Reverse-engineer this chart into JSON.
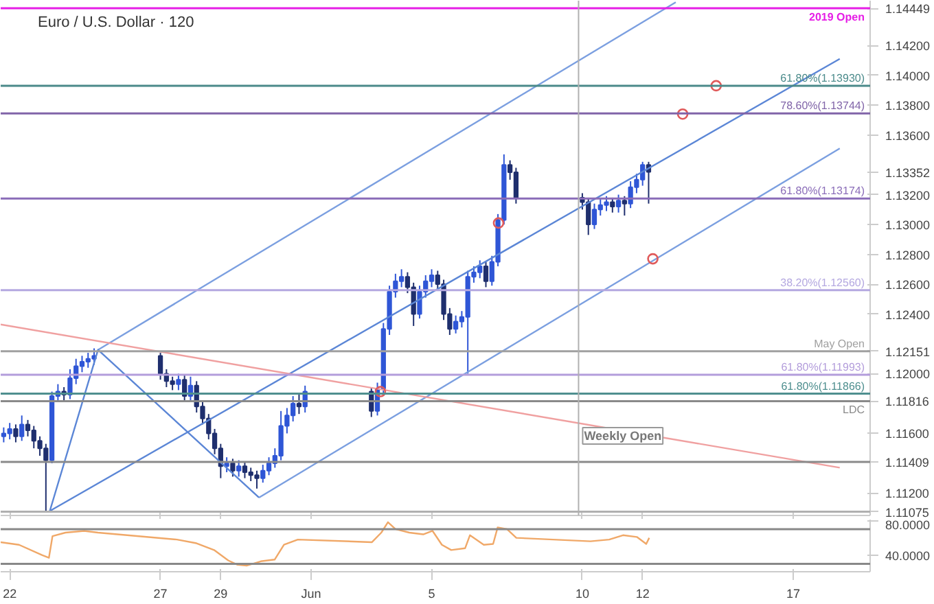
{
  "chart_data": [
    {
      "type": "candlestick",
      "title": "Euro / U.S. Dollar · 120",
      "x": [
        "2019-05-21T19:12",
        "2019-05-22T00:00",
        "2019-05-22T04:48",
        "2019-05-22T09:36",
        "2019-05-22T14:24",
        "2019-05-22T19:12",
        "2019-05-23T00:00",
        "2019-05-23T04:48",
        "2019-05-23T09:36",
        "2019-05-23T14:24",
        "2019-05-23T19:12",
        "2019-05-24T00:00",
        "2019-05-24T04:48",
        "2019-05-24T09:36",
        "2019-05-24T14:24",
        "2019-05-24T19:12",
        "2019-05-27T00:00",
        "2019-05-27T04:48",
        "2019-05-27T09:36",
        "2019-05-27T14:24",
        "2019-05-27T19:12",
        "2019-05-28T00:00",
        "2019-05-28T04:48",
        "2019-05-28T09:36",
        "2019-05-28T14:24",
        "2019-05-28T19:12",
        "2019-05-29T00:00",
        "2019-05-29T04:48",
        "2019-05-29T09:36",
        "2019-05-29T14:24",
        "2019-05-29T19:12",
        "2019-05-30T00:00",
        "2019-05-30T04:48",
        "2019-05-30T09:36",
        "2019-05-30T14:24",
        "2019-05-30T19:12",
        "2019-05-31T00:00",
        "2019-05-31T04:48",
        "2019-05-31T09:36",
        "2019-05-31T14:24",
        "2019-05-31T19:12",
        "2019-06-03T00:00",
        "2019-06-03T04:48",
        "2019-06-03T09:36",
        "2019-06-03T14:24",
        "2019-06-03T19:12",
        "2019-06-04T00:00",
        "2019-06-04T04:48",
        "2019-06-04T09:36",
        "2019-06-04T14:24",
        "2019-06-04T19:12",
        "2019-06-05T00:00",
        "2019-06-05T04:48",
        "2019-06-05T09:36",
        "2019-06-05T14:24",
        "2019-06-05T19:12",
        "2019-06-06T00:00",
        "2019-06-06T04:48",
        "2019-06-06T09:36",
        "2019-06-06T14:24",
        "2019-06-06T19:12",
        "2019-06-07T00:00",
        "2019-06-07T04:48",
        "2019-06-07T09:36",
        "2019-06-07T14:24",
        "2019-06-07T19:12",
        "2019-06-10T00:00",
        "2019-06-10T04:48",
        "2019-06-10T09:36",
        "2019-06-10T14:24",
        "2019-06-10T19:12",
        "2019-06-11T00:00",
        "2019-06-11T04:48",
        "2019-06-11T09:36",
        "2019-06-11T14:24",
        "2019-06-11T19:12",
        "2019-06-12T00:00",
        "2019-06-12T04:48"
      ],
      "ohlc": [
        [
          1.1158,
          1.1164,
          1.1154,
          1.116
        ],
        [
          1.116,
          1.1167,
          1.1156,
          1.1163
        ],
        [
          1.1163,
          1.1166,
          1.1154,
          1.1158
        ],
        [
          1.1158,
          1.1172,
          1.1155,
          1.1166
        ],
        [
          1.1166,
          1.1169,
          1.1158,
          1.1162
        ],
        [
          1.1162,
          1.1165,
          1.115,
          1.1155
        ],
        [
          1.1155,
          1.1158,
          1.1145,
          1.115
        ],
        [
          1.115,
          1.1153,
          1.1108,
          1.1142
        ],
        [
          1.1142,
          1.1188,
          1.114,
          1.1185
        ],
        [
          1.1185,
          1.1193,
          1.1181,
          1.1188
        ],
        [
          1.1188,
          1.1191,
          1.1182,
          1.1186
        ],
        [
          1.1186,
          1.1203,
          1.1183,
          1.1197
        ],
        [
          1.1197,
          1.121,
          1.1193,
          1.1205
        ],
        [
          1.1205,
          1.1212,
          1.1201,
          1.1208
        ],
        [
          1.1208,
          1.1214,
          1.1204,
          1.121
        ],
        [
          1.121,
          1.1217,
          1.1206,
          1.1212
        ],
        [
          1.1212,
          1.1214,
          1.1196,
          1.12
        ],
        [
          1.12,
          1.1203,
          1.1191,
          1.1195
        ],
        [
          1.1195,
          1.1198,
          1.1189,
          1.1193
        ],
        [
          1.1193,
          1.12,
          1.1189,
          1.1196
        ],
        [
          1.1196,
          1.1199,
          1.1181,
          1.1185
        ],
        [
          1.1185,
          1.1198,
          1.1182,
          1.1192
        ],
        [
          1.1192,
          1.1195,
          1.1174,
          1.1178
        ],
        [
          1.1178,
          1.1181,
          1.1166,
          1.117
        ],
        [
          1.117,
          1.1173,
          1.1156,
          1.116
        ],
        [
          1.116,
          1.1163,
          1.1146,
          1.115
        ],
        [
          1.115,
          1.1153,
          1.113,
          1.1138
        ],
        [
          1.1138,
          1.1144,
          1.1134,
          1.114
        ],
        [
          1.114,
          1.1143,
          1.1131,
          1.1135
        ],
        [
          1.1135,
          1.1142,
          1.1131,
          1.1138
        ],
        [
          1.1138,
          1.1141,
          1.113,
          1.1134
        ],
        [
          1.1134,
          1.1137,
          1.1128,
          1.1132
        ],
        [
          1.1132,
          1.1135,
          1.1123,
          1.113
        ],
        [
          1.113,
          1.1139,
          1.1127,
          1.1135
        ],
        [
          1.1135,
          1.1144,
          1.1132,
          1.114
        ],
        [
          1.114,
          1.115,
          1.1137,
          1.1145
        ],
        [
          1.1145,
          1.1175,
          1.1142,
          1.1165
        ],
        [
          1.1165,
          1.1177,
          1.116,
          1.1172
        ],
        [
          1.1172,
          1.1185,
          1.1168,
          1.118
        ],
        [
          1.118,
          1.1186,
          1.1173,
          1.1178
        ],
        [
          1.1178,
          1.1192,
          1.1174,
          1.1188
        ],
        [
          1.1188,
          1.1191,
          1.1171,
          1.1175
        ],
        [
          1.1175,
          1.1194,
          1.1172,
          1.119
        ],
        [
          1.119,
          1.1234,
          1.1187,
          1.123
        ],
        [
          1.123,
          1.1259,
          1.1226,
          1.1255
        ],
        [
          1.1255,
          1.1267,
          1.1251,
          1.1262
        ],
        [
          1.1262,
          1.127,
          1.1258,
          1.1265
        ],
        [
          1.1265,
          1.1268,
          1.1254,
          1.1258
        ],
        [
          1.1258,
          1.1261,
          1.1232,
          1.124
        ],
        [
          1.124,
          1.1259,
          1.1237,
          1.1255
        ],
        [
          1.1255,
          1.1266,
          1.1251,
          1.1262
        ],
        [
          1.1262,
          1.127,
          1.1258,
          1.1266
        ],
        [
          1.1266,
          1.1269,
          1.1256,
          1.126
        ],
        [
          1.126,
          1.1263,
          1.1236,
          1.124
        ],
        [
          1.124,
          1.1244,
          1.1226,
          1.123
        ],
        [
          1.123,
          1.1239,
          1.1227,
          1.1235
        ],
        [
          1.1235,
          1.1242,
          1.1231,
          1.1238
        ],
        [
          1.1238,
          1.1269,
          1.12,
          1.1265
        ],
        [
          1.1265,
          1.1272,
          1.1261,
          1.1268
        ],
        [
          1.1268,
          1.1276,
          1.1264,
          1.1272
        ],
        [
          1.1272,
          1.1275,
          1.1258,
          1.1262
        ],
        [
          1.1262,
          1.1279,
          1.1259,
          1.1275
        ],
        [
          1.1275,
          1.1307,
          1.1272,
          1.1303
        ],
        [
          1.1303,
          1.1347,
          1.13,
          1.134
        ],
        [
          1.134,
          1.1343,
          1.133,
          1.1335
        ],
        [
          1.1335,
          1.1338,
          1.1314,
          1.1318
        ],
        [
          1.1318,
          1.1321,
          1.131,
          1.1315
        ],
        [
          1.1315,
          1.1318,
          1.1293,
          1.13
        ],
        [
          1.13,
          1.1314,
          1.1297,
          1.131
        ],
        [
          1.131,
          1.1317,
          1.1306,
          1.1313
        ],
        [
          1.1313,
          1.1319,
          1.1309,
          1.1315
        ],
        [
          1.1315,
          1.1318,
          1.1308,
          1.1312
        ],
        [
          1.1312,
          1.132,
          1.1308,
          1.1316
        ],
        [
          1.1316,
          1.1319,
          1.1306,
          1.1314
        ],
        [
          1.1314,
          1.1329,
          1.1311,
          1.1325
        ],
        [
          1.1325,
          1.1334,
          1.1321,
          1.133
        ],
        [
          1.133,
          1.1342,
          1.1326,
          1.134
        ],
        [
          1.134,
          1.1342,
          1.1314,
          1.13352
        ]
      ],
      "series": [
        {
          "type": "line",
          "x": [
            "2019-05-24T22:19",
            "2019-06-13T02:24"
          ],
          "values": [
            1.1216,
            1.1449
          ],
          "color": "#7b9fe0"
        },
        {
          "type": "line",
          "x": [
            "2019-05-23T07:55",
            "2019-06-18T13:00"
          ],
          "values": [
            1.1108,
            1.1411
          ],
          "color": "#5b86d6"
        },
        {
          "type": "line",
          "x": [
            "2019-05-30T06:29",
            "2019-06-18T13:00"
          ],
          "values": [
            1.1117,
            1.1351
          ],
          "color": "#7b9fe0"
        },
        {
          "type": "line",
          "x": [
            "2019-05-23T07:55",
            "2019-05-24T22:19",
            "2019-05-30T06:29"
          ],
          "values": [
            1.1108,
            1.1216,
            1.1117
          ],
          "color": "#5b86d6"
        },
        {
          "type": "line",
          "x": [
            "2019-05-21T16:48",
            "2019-06-18T13:00"
          ],
          "values": [
            1.1233,
            1.1137
          ],
          "color": "#f0a0a0"
        },
        {
          "type": "scatter",
          "marker": "circle",
          "x": [
            "2019-06-03T07:12",
            "2019-06-07T05:17",
            "2019-06-12T08:10",
            "2019-06-13T07:55",
            "2019-06-14T10:34"
          ],
          "values": [
            1.1188,
            1.1301,
            1.1277,
            1.1374,
            1.1393
          ],
          "color": "#e05a5a"
        }
      ],
      "xlim": [
        "2019-05-21T16:48",
        "2019-06-19T13:12"
      ],
      "xticks": [
        {
          "value": "2019-05-22",
          "label": null
        },
        {
          "value": "2019-05-27",
          "label": null
        },
        {
          "value": "2019-05-29",
          "label": null
        },
        {
          "value": "2019-06-01",
          "label": null
        },
        {
          "value": "2019-06-05",
          "label": null
        },
        {
          "value": "2019-06-10",
          "label": null
        },
        {
          "value": "2019-06-12",
          "label": null
        },
        {
          "value": "2019-06-17",
          "label": null
        }
      ],
      "ylim": [
        1.1105,
        1.145
      ],
      "yticks": [
        1.14449,
        {
          "value": 1.142,
          "label": "1.14200"
        },
        {
          "value": 1.14,
          "label": "1.14000"
        },
        {
          "value": 1.138,
          "label": "1.13800"
        },
        {
          "value": 1.136,
          "label": "1.13600"
        },
        1.13352,
        {
          "value": 1.132,
          "label": "1.13200"
        },
        {
          "value": 1.13,
          "label": "1.13000"
        },
        {
          "value": 1.128,
          "label": "1.12800"
        },
        {
          "value": 1.126,
          "label": "1.12600"
        },
        {
          "value": 1.124,
          "label": "1.12400"
        },
        1.12151,
        {
          "value": 1.12,
          "label": "1.12000"
        },
        1.11816,
        {
          "value": 1.116,
          "label": "1.11600"
        },
        1.11409,
        {
          "value": 1.112,
          "label": "1.11200"
        },
        1.11075
      ],
      "tick_labels": "y",
      "ref_lines": [
        {
          "axis": "y",
          "value": 1.14449,
          "label": "2019 Open",
          "color": "#e61ee6"
        },
        {
          "axis": "y",
          "value": 1.1393,
          "label": "61.80%(1.13930)",
          "color": "#4a8a8a"
        },
        {
          "axis": "y",
          "value": 1.13744,
          "label": "78.60%(1.13744)",
          "color": "#8064a8"
        },
        {
          "axis": "y",
          "value": 1.13174,
          "label": "61.80%(1.13174)",
          "color": "#8a6cb8"
        },
        {
          "axis": "y",
          "value": 1.1256,
          "label": "38.20%(1.12560)",
          "color": "#b4a8e0"
        },
        {
          "axis": "y",
          "value": 1.12151,
          "label": "May Open",
          "color": "#a0a0a0"
        },
        {
          "axis": "y",
          "value": 1.11993,
          "label": "61.80%(1.11993)",
          "color": "#b39ddb"
        },
        {
          "axis": "y",
          "value": 1.11866,
          "label": "61.80%(1.11866)",
          "color": "#4f8f8f"
        },
        {
          "axis": "y",
          "value": 1.11816,
          "label": "LDC",
          "color": "#8a8a8a"
        },
        {
          "axis": "y",
          "value": 1.11409,
          "label": null,
          "color": "#8a8a8a"
        },
        {
          "axis": "y",
          "value": 1.11075,
          "label": null,
          "color": "#b0b0b0"
        },
        {
          "axis": "x",
          "value": "2019-06-09T21:00",
          "label": "Weekly Open",
          "color": "#b0b0b0"
        }
      ]
    },
    {
      "type": "line",
      "series": [
        {
          "color": "#f0a868",
          "x": [
            "2019-05-21T16:48",
            "2019-05-22T07:26",
            "2019-05-23T01:55",
            "2019-05-23T07:12",
            "2019-05-23T10:05",
            "2019-05-23T20:24",
            "2019-05-24T11:17",
            "2019-05-24T22:19",
            "2019-05-27T13:12",
            "2019-05-28T04:05",
            "2019-05-28T18:43",
            "2019-05-29T06:00",
            "2019-05-29T13:26",
            "2019-05-29T20:38",
            "2019-05-30T07:55",
            "2019-05-30T18:58",
            "2019-05-31T02:24",
            "2019-05-31T13:26",
            "2019-06-03T00:29",
            "2019-06-03T07:55",
            "2019-06-03T13:12",
            "2019-06-03T19:12",
            "2019-06-04T06:14",
            "2019-06-04T17:17",
            "2019-06-05T00:43",
            "2019-06-05T08:10",
            "2019-06-05T15:36",
            "2019-06-06T02:38",
            "2019-06-06T06:29",
            "2019-06-06T17:31",
            "2019-06-07T00:58",
            "2019-06-07T04:34",
            "2019-06-07T12:00",
            "2019-06-07T19:26",
            "2019-06-10T06:29",
            "2019-06-10T21:22",
            "2019-06-11T08:24",
            "2019-06-11T19:26",
            "2019-06-12T02:53",
            "2019-06-12T05:17"
          ],
          "values": [
            55,
            52,
            40,
            37,
            62,
            66,
            68,
            66,
            58,
            54,
            46,
            34,
            29,
            28,
            33,
            35,
            52,
            58,
            55,
            66,
            78,
            70,
            66,
            64,
            68,
            52,
            46,
            48,
            63,
            52,
            53,
            72,
            70,
            60,
            56,
            58,
            63,
            61,
            53,
            60
          ]
        }
      ],
      "xlim": [
        "2019-05-21T16:48",
        "2019-06-19T13:12"
      ],
      "xticks": [
        {
          "value": "2019-05-22",
          "label": "22"
        },
        {
          "value": "2019-05-27",
          "label": "27"
        },
        {
          "value": "2019-05-29",
          "label": "29"
        },
        {
          "value": "2019-06-01",
          "label": "Jun"
        },
        {
          "value": "2019-06-05",
          "label": "5"
        },
        {
          "value": "2019-06-10",
          "label": "10"
        },
        {
          "value": "2019-06-12",
          "label": "12"
        },
        {
          "value": "2019-06-17",
          "label": "17"
        }
      ],
      "ylim": [
        21,
        81
      ],
      "yticks": [
        {
          "value": 80,
          "label": "80.0000"
        },
        {
          "value": 40,
          "label": "40.0000"
        }
      ],
      "ref_lines": [
        {
          "axis": "y",
          "value": 70,
          "label": null,
          "color": "#888888"
        },
        {
          "axis": "y",
          "value": 30,
          "label": null,
          "color": "#888888"
        }
      ]
    }
  ]
}
